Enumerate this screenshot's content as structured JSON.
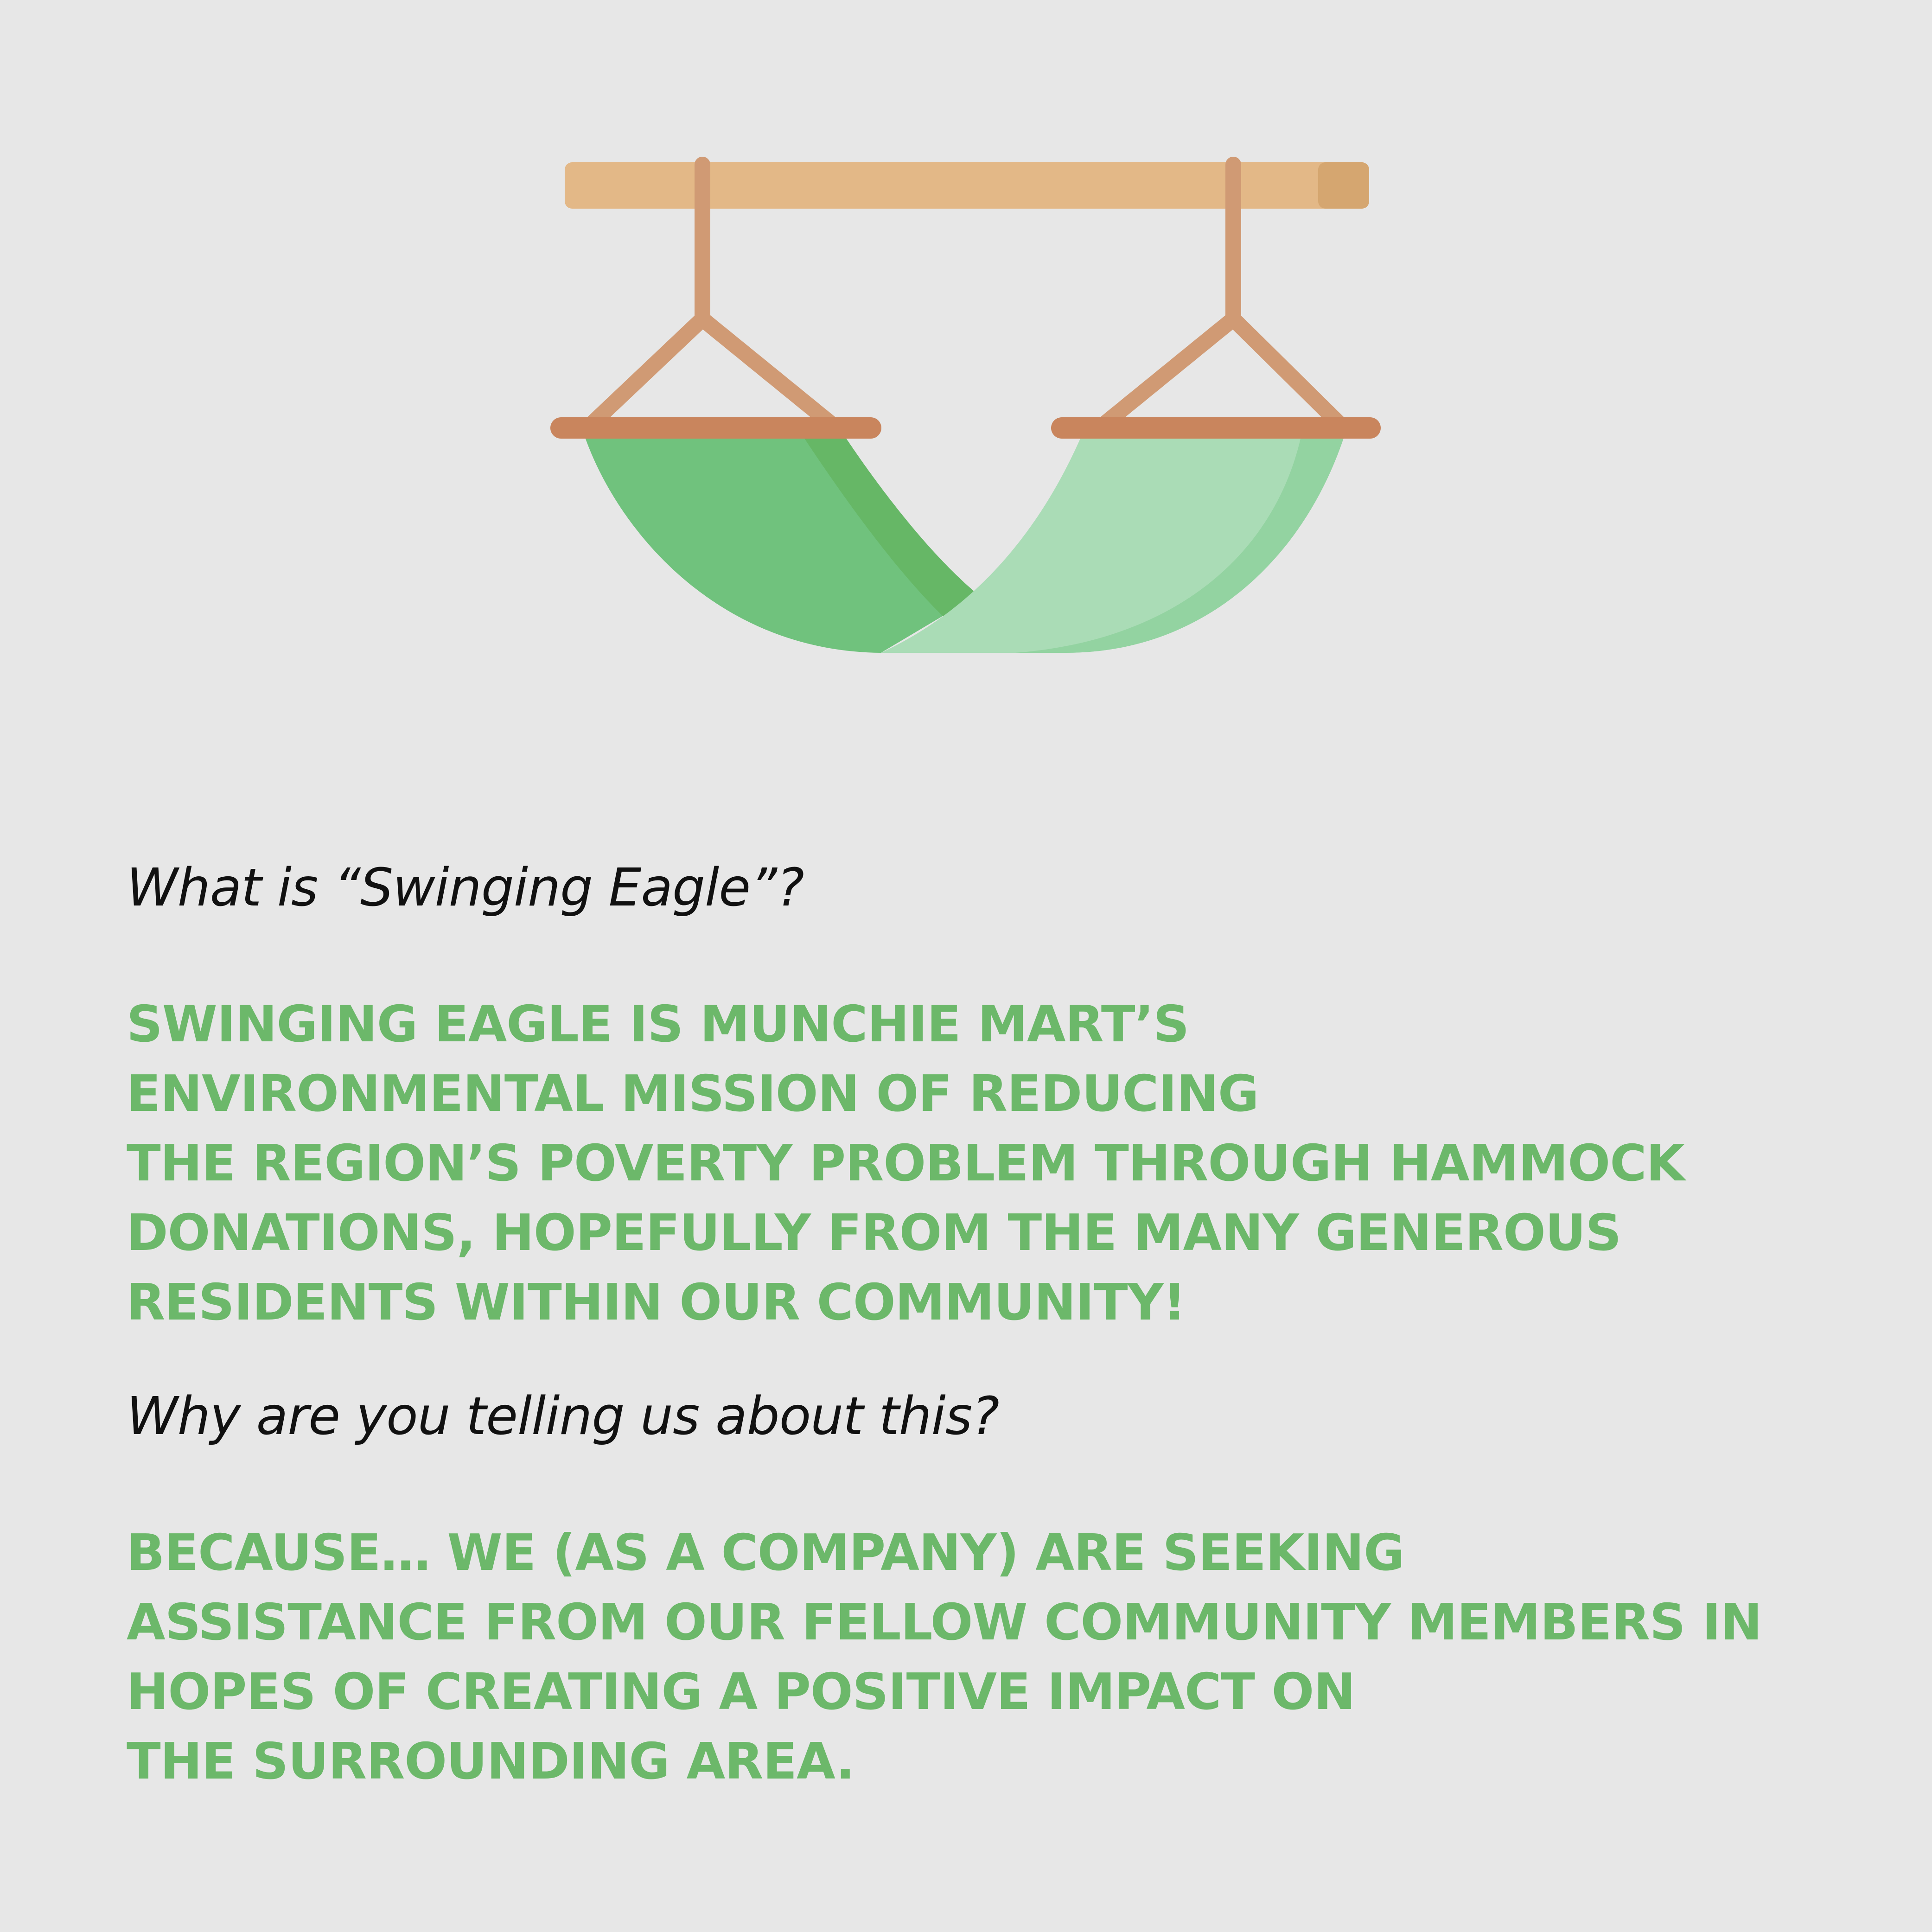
{
  "illustration": {
    "icon": "hammock-icon",
    "colors": {
      "pole": "#e3b887",
      "pole_end": "#d5a670",
      "rope": "#d09a74",
      "spreader_bar": "#c9855d",
      "fabric_dark": "#70c27d",
      "fabric_fold": "#66b766",
      "fabric_light": "#aadcb6",
      "fabric_light_edge": "#93d3a1"
    }
  },
  "sections": [
    {
      "question": "What is “Swinging Eagle”?",
      "answer_lines": [
        "SWINGING EAGLE IS MUNCHIE MART’S",
        "ENVIRONMENTAL MISSION OF REDUCING",
        "THE REGION’S POVERTY PROBLEM THROUGH HAMMOCK",
        "DONATIONS, HOPEFULLY FROM THE MANY GENEROUS",
        "RESIDENTS WITHIN OUR COMMUNITY!"
      ]
    },
    {
      "question": "Why are you telling us about this?",
      "answer_lines": [
        "BECAUSE… WE (AS A COMPANY) ARE SEEKING",
        "ASSISTANCE FROM OUR FELLOW COMMUNITY MEMBERS IN",
        "HOPES OF CREATING A POSITIVE IMPACT ON",
        "THE SURROUNDING AREA."
      ]
    }
  ],
  "colors": {
    "background": "#e7e7e7",
    "question_text": "#111111",
    "answer_text": "#6cb86a"
  }
}
